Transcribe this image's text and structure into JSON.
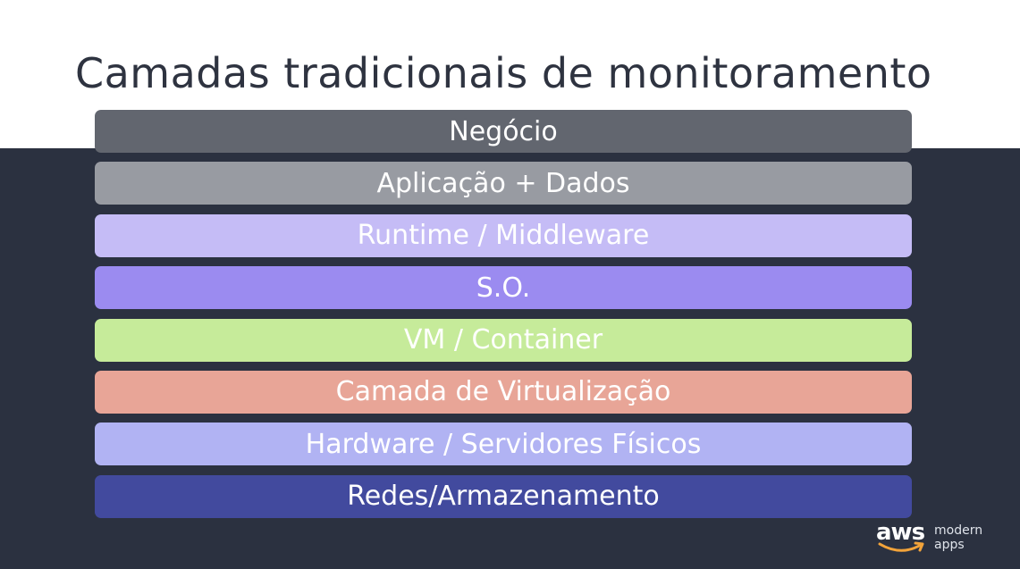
{
  "slide": {
    "title": "Camadas tradicionais de monitoramento"
  },
  "layers": [
    {
      "label": "Negócio",
      "color": "#62666f"
    },
    {
      "label": "Aplicação + Dados",
      "color": "#989ba2"
    },
    {
      "label": "Runtime / Middleware",
      "color": "#c5bcf6"
    },
    {
      "label": "S.O.",
      "color": "#9b8bf0"
    },
    {
      "label": "VM / Container",
      "color": "#c6eb9a"
    },
    {
      "label": "Camada de Virtualização",
      "color": "#e8a597"
    },
    {
      "label": "Hardware / Servidores Físicos",
      "color": "#b1b3f3"
    },
    {
      "label": "Redes/Armazenamento",
      "color": "#424a9e"
    }
  ],
  "branding": {
    "logo_text": "aws",
    "line1": "modern",
    "line2": "apps",
    "smile_color": "#f2a33a"
  }
}
